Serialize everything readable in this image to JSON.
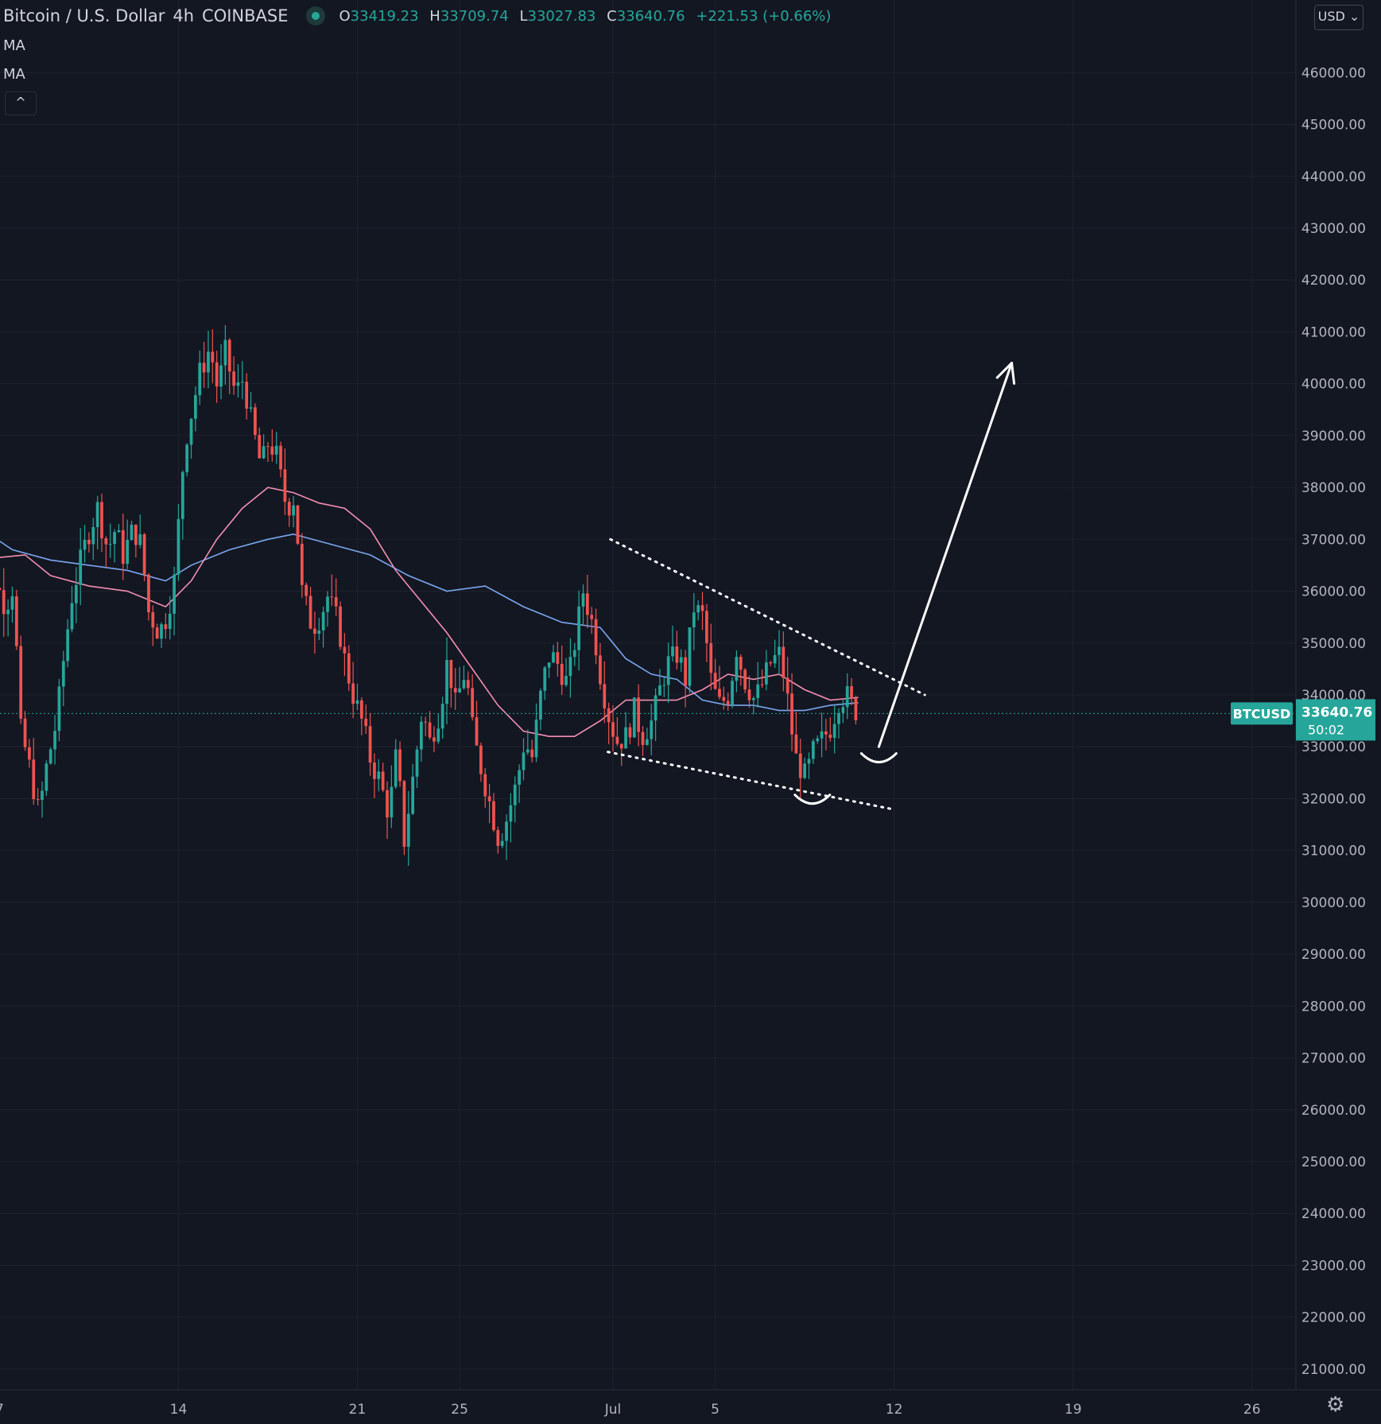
{
  "header": {
    "symbol": "Bitcoin / U.S. Dollar",
    "interval": "4h",
    "exchange": "COINBASE",
    "open_label": "O",
    "open": "33419.23",
    "high_label": "H",
    "high": "33709.74",
    "low_label": "L",
    "low": "33027.83",
    "close_label": "C",
    "close": "33640.76",
    "change": "+221.53 (+0.66%)"
  },
  "indicators": [
    "MA",
    "MA"
  ],
  "collapse_glyph": "^",
  "currency_button": "USD ⌄",
  "price_tag": {
    "symbol": "BTCUSD",
    "price": "33640.76",
    "countdown": "50:02"
  },
  "colors": {
    "background": "#131722",
    "up": "#26a69a",
    "down": "#ef5350",
    "ma_fast": "#f48fb1",
    "ma_slow": "#7aa7f0",
    "annotation": "#ffffff"
  },
  "chart_data": {
    "type": "candlestick",
    "interval": "4h",
    "ylim": [
      20600,
      47400
    ],
    "y_ticks": [
      "21000.00",
      "22000.00",
      "23000.00",
      "24000.00",
      "25000.00",
      "26000.00",
      "27000.00",
      "28000.00",
      "29000.00",
      "30000.00",
      "31000.00",
      "32000.00",
      "33000.00",
      "34000.00",
      "35000.00",
      "36000.00",
      "37000.00",
      "38000.00",
      "39000.00",
      "40000.00",
      "41000.00",
      "42000.00",
      "43000.00",
      "44000.00",
      "45000.00",
      "46000.00"
    ],
    "x_ticks": [
      {
        "label": "7",
        "day": -24
      },
      {
        "label": "14",
        "day": -17
      },
      {
        "label": "21",
        "day": -10
      },
      {
        "label": "25",
        "day": -6
      },
      {
        "label": "Jul",
        "day": 0
      },
      {
        "label": "5",
        "day": 4
      },
      {
        "label": "12",
        "day": 11
      },
      {
        "label": "19",
        "day": 18
      },
      {
        "label": "26",
        "day": 25
      }
    ],
    "price_path": [
      [
        -25,
        36000
      ],
      [
        -24.6,
        36300
      ],
      [
        -24.3,
        35900
      ],
      [
        -24,
        36200
      ],
      [
        -23.6,
        35700
      ],
      [
        -23.3,
        36100
      ],
      [
        -23,
        33300
      ],
      [
        -22.7,
        32700
      ],
      [
        -22.3,
        31700
      ],
      [
        -22,
        32600
      ],
      [
        -21.6,
        33500
      ],
      [
        -21.3,
        34800
      ],
      [
        -21,
        35900
      ],
      [
        -20.6,
        36700
      ],
      [
        -20.3,
        37200
      ],
      [
        -20,
        37600
      ],
      [
        -19.6,
        36800
      ],
      [
        -19.3,
        37200
      ],
      [
        -19,
        36700
      ],
      [
        -18.6,
        37200
      ],
      [
        -18.3,
        36900
      ],
      [
        -18,
        35600
      ],
      [
        -17.6,
        35200
      ],
      [
        -17.3,
        35500
      ],
      [
        -17,
        36200
      ],
      [
        -16.6,
        38800
      ],
      [
        -16.3,
        39500
      ],
      [
        -16,
        40200
      ],
      [
        -15.6,
        40700
      ],
      [
        -15.3,
        39900
      ],
      [
        -15,
        40600
      ],
      [
        -14.6,
        39800
      ],
      [
        -14.3,
        40100
      ],
      [
        -14,
        39300
      ],
      [
        -13.6,
        38400
      ],
      [
        -13.3,
        38900
      ],
      [
        -13,
        38600
      ],
      [
        -12.6,
        37600
      ],
      [
        -12.3,
        37800
      ],
      [
        -12,
        36000
      ],
      [
        -11.6,
        35300
      ],
      [
        -11.3,
        35500
      ],
      [
        -11,
        35900
      ],
      [
        -10.6,
        35400
      ],
      [
        -10.3,
        34600
      ],
      [
        -10,
        34000
      ],
      [
        -9.6,
        33400
      ],
      [
        -9.3,
        32700
      ],
      [
        -9,
        32400
      ],
      [
        -8.6,
        31700
      ],
      [
        -8.3,
        32900
      ],
      [
        -8,
        31200
      ],
      [
        -7.6,
        32600
      ],
      [
        -7.3,
        33700
      ],
      [
        -7,
        33100
      ],
      [
        -6.6,
        33700
      ],
      [
        -6.3,
        34700
      ],
      [
        -6,
        33800
      ],
      [
        -5.6,
        34500
      ],
      [
        -5.3,
        33200
      ],
      [
        -5,
        32600
      ],
      [
        -4.6,
        31800
      ],
      [
        -4.3,
        31200
      ],
      [
        -4,
        31600
      ],
      [
        -3.6,
        32300
      ],
      [
        -3.3,
        33100
      ],
      [
        -3,
        32800
      ],
      [
        -2.6,
        34200
      ],
      [
        -2.3,
        34800
      ],
      [
        -2,
        34600
      ],
      [
        -1.6,
        34200
      ],
      [
        -1.3,
        35100
      ],
      [
        -1,
        36000
      ],
      [
        -0.6,
        35300
      ],
      [
        -0.3,
        34300
      ],
      [
        0,
        33600
      ],
      [
        0.3,
        33100
      ],
      [
        0.7,
        33200
      ],
      [
        1,
        33700
      ],
      [
        1.3,
        33200
      ],
      [
        1.7,
        33500
      ],
      [
        2,
        34100
      ],
      [
        2.3,
        34600
      ],
      [
        2.7,
        34800
      ],
      [
        3,
        34300
      ],
      [
        3.3,
        35700
      ],
      [
        3.7,
        35500
      ],
      [
        4,
        34300
      ],
      [
        4.3,
        33800
      ],
      [
        4.7,
        34000
      ],
      [
        5,
        34900
      ],
      [
        5.3,
        34300
      ],
      [
        5.7,
        33900
      ],
      [
        6,
        34200
      ],
      [
        6.3,
        34600
      ],
      [
        6.7,
        34800
      ],
      [
        7,
        33900
      ],
      [
        7.3,
        32800
      ],
      [
        7.7,
        32400
      ],
      [
        8,
        32900
      ],
      [
        8.3,
        33100
      ],
      [
        8.7,
        33400
      ],
      [
        9,
        33900
      ],
      [
        9.3,
        34000
      ],
      [
        9.6,
        33700
      ]
    ],
    "ma_fast": [
      [
        -25,
        36600
      ],
      [
        -23,
        36700
      ],
      [
        -22,
        36300
      ],
      [
        -20.5,
        36100
      ],
      [
        -19,
        36000
      ],
      [
        -17.5,
        35700
      ],
      [
        -16.5,
        36200
      ],
      [
        -15.5,
        37000
      ],
      [
        -14.5,
        37600
      ],
      [
        -13.5,
        38000
      ],
      [
        -12.5,
        37900
      ],
      [
        -11.5,
        37700
      ],
      [
        -10.5,
        37600
      ],
      [
        -9.5,
        37200
      ],
      [
        -8.5,
        36400
      ],
      [
        -7.5,
        35800
      ],
      [
        -6.5,
        35200
      ],
      [
        -5.5,
        34500
      ],
      [
        -4.5,
        33800
      ],
      [
        -3.5,
        33300
      ],
      [
        -2.5,
        33200
      ],
      [
        -1.5,
        33200
      ],
      [
        -0.5,
        33500
      ],
      [
        0.5,
        33900
      ],
      [
        1.5,
        33900
      ],
      [
        2.5,
        33900
      ],
      [
        3.5,
        34100
      ],
      [
        4.5,
        34400
      ],
      [
        5.5,
        34300
      ],
      [
        6.5,
        34400
      ],
      [
        7.5,
        34100
      ],
      [
        8.5,
        33900
      ],
      [
        9.6,
        33950
      ]
    ],
    "ma_slow": [
      [
        -25,
        37300
      ],
      [
        -23.5,
        36800
      ],
      [
        -22,
        36600
      ],
      [
        -20.5,
        36500
      ],
      [
        -19,
        36400
      ],
      [
        -17.5,
        36200
      ],
      [
        -16.5,
        36500
      ],
      [
        -15,
        36800
      ],
      [
        -13.5,
        37000
      ],
      [
        -12.5,
        37100
      ],
      [
        -11,
        36900
      ],
      [
        -9.5,
        36700
      ],
      [
        -8,
        36300
      ],
      [
        -6.5,
        36000
      ],
      [
        -5,
        36100
      ],
      [
        -3.5,
        35700
      ],
      [
        -2,
        35400
      ],
      [
        -0.5,
        35300
      ],
      [
        0.5,
        34700
      ],
      [
        1.5,
        34400
      ],
      [
        2.5,
        34300
      ],
      [
        3.5,
        33900
      ],
      [
        4.5,
        33800
      ],
      [
        5.5,
        33800
      ],
      [
        6.5,
        33700
      ],
      [
        7.5,
        33700
      ],
      [
        8.5,
        33800
      ],
      [
        9.6,
        33850
      ]
    ],
    "annotations": [
      {
        "kind": "dotted",
        "from": [
          -0.1,
          37000
        ],
        "to": [
          12.2,
          34000
        ]
      },
      {
        "kind": "dotted",
        "from": [
          -0.2,
          32900
        ],
        "to": [
          10.9,
          31800
        ]
      },
      {
        "kind": "arc",
        "center": [
          7.8,
          31950
        ]
      },
      {
        "kind": "arc",
        "center": [
          10.4,
          32750
        ]
      },
      {
        "kind": "arrow",
        "from": [
          10.4,
          33000
        ],
        "to": [
          15.6,
          40400
        ]
      }
    ]
  }
}
